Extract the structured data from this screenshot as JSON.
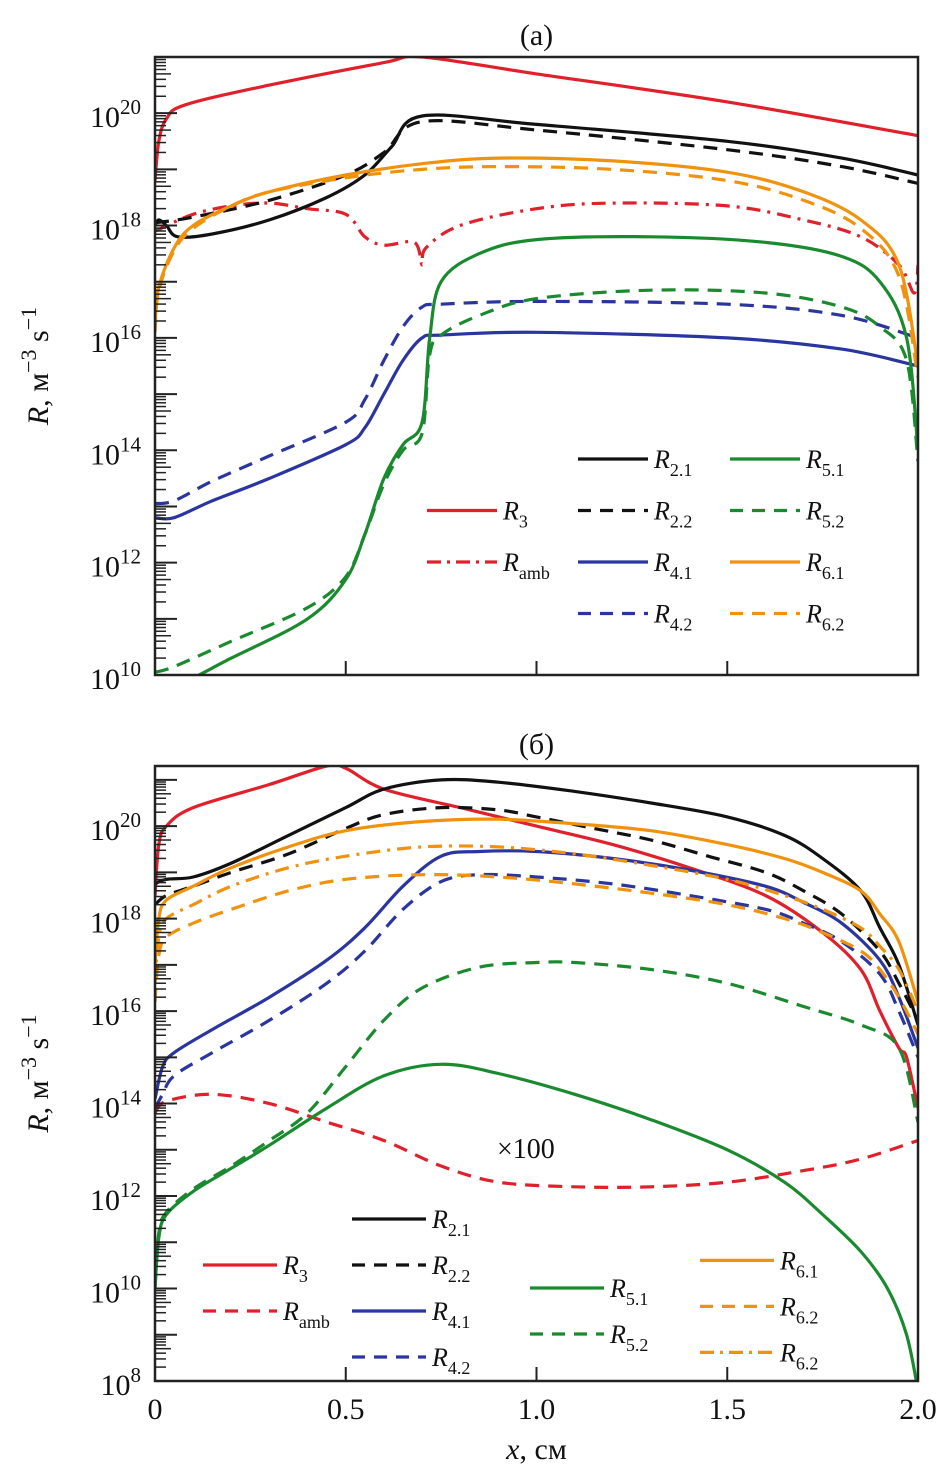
{
  "chart_data": [
    {
      "type": "line",
      "title": "(a)",
      "xlabel": "x, см",
      "ylabel": "R, м^-3 s^-1",
      "yscale": "log",
      "xlim": [
        0,
        2.0
      ],
      "ylim_log10": [
        10,
        21
      ],
      "xticks": [
        0,
        0.5,
        1.0,
        1.5,
        2.0
      ],
      "show_xtick_labels": false,
      "yticks_log10": [
        10,
        12,
        14,
        16,
        18,
        20
      ],
      "ytick_labels": [
        {
          "base": "10",
          "exp": "10"
        },
        {
          "base": "10",
          "exp": "12"
        },
        {
          "base": "10",
          "exp": "14"
        },
        {
          "base": "10",
          "exp": "16"
        },
        {
          "base": "10",
          "exp": "18"
        },
        {
          "base": "10",
          "exp": "20"
        }
      ],
      "legend": {
        "placement": "lower-right",
        "columns": [
          [
            "R3",
            "Ramb"
          ],
          [
            "R2.1",
            "R2.2",
            "R4.1",
            "R4.2"
          ],
          [
            "R5.1",
            "R5.2",
            "R6.1",
            "R6.2"
          ]
        ]
      },
      "series": [
        {
          "name": "R3",
          "label": "R",
          "sub": "3",
          "color": "#e0202a",
          "dash": "solid",
          "x": [
            0,
            0.01,
            0.03,
            0.08,
            0.3,
            0.6,
            0.7,
            1.0,
            1.5,
            2.0
          ],
          "log10y": [
            18.8,
            19.5,
            19.9,
            20.15,
            20.5,
            20.9,
            21.0,
            20.7,
            20.2,
            19.6
          ]
        },
        {
          "name": "Ramb",
          "label": "R",
          "sub": "amb",
          "color": "#e0202a",
          "dash": "dashdot",
          "x": [
            0,
            0.1,
            0.2,
            0.3,
            0.4,
            0.5,
            0.55,
            0.6,
            0.68,
            0.7,
            0.71,
            0.8,
            1.0,
            1.2,
            1.5,
            1.7,
            1.85,
            1.95,
            1.99,
            2.0
          ],
          "log10y": [
            17.9,
            18.2,
            18.35,
            18.4,
            18.3,
            18.2,
            17.8,
            17.65,
            17.7,
            17.3,
            17.6,
            18.0,
            18.3,
            18.4,
            18.35,
            18.1,
            17.8,
            17.3,
            16.8,
            17.3
          ],
          "scaled_x100": false
        },
        {
          "name": "R2.1",
          "label": "R",
          "sub": "2.1",
          "color": "#111111",
          "dash": "solid",
          "x": [
            0,
            0.01,
            0.03,
            0.06,
            0.15,
            0.3,
            0.45,
            0.55,
            0.62,
            0.7,
            1.0,
            1.5,
            1.8,
            2.0
          ],
          "log10y": [
            18.0,
            18.1,
            18.0,
            17.8,
            17.85,
            18.1,
            18.5,
            18.9,
            19.4,
            19.95,
            19.8,
            19.5,
            19.2,
            18.9
          ]
        },
        {
          "name": "R2.2",
          "label": "R",
          "sub": "2.2",
          "color": "#111111",
          "dash": "dashed",
          "x": [
            0,
            0.1,
            0.3,
            0.5,
            0.6,
            0.7,
            1.0,
            1.5,
            1.8,
            2.0
          ],
          "log10y": [
            18.05,
            18.15,
            18.45,
            18.9,
            19.3,
            19.85,
            19.7,
            19.35,
            19.05,
            18.75
          ]
        },
        {
          "name": "R4.1",
          "label": "R",
          "sub": "4.1",
          "color": "#2a35a0",
          "dash": "solid",
          "x": [
            0,
            0.05,
            0.15,
            0.3,
            0.5,
            0.55,
            0.6,
            0.65,
            0.7,
            0.75,
            1.0,
            1.5,
            1.8,
            2.0
          ],
          "log10y": [
            12.8,
            12.8,
            13.1,
            13.5,
            14.1,
            14.4,
            15.0,
            15.6,
            16.0,
            16.05,
            16.1,
            16.0,
            15.8,
            15.5
          ]
        },
        {
          "name": "R4.2",
          "label": "R",
          "sub": "4.2",
          "color": "#2a35a0",
          "dash": "dashed",
          "x": [
            0,
            0.05,
            0.15,
            0.3,
            0.5,
            0.55,
            0.6,
            0.65,
            0.7,
            0.75,
            1.0,
            1.5,
            1.8,
            2.0
          ],
          "log10y": [
            13.05,
            13.1,
            13.45,
            13.9,
            14.5,
            14.9,
            15.6,
            16.2,
            16.55,
            16.6,
            16.65,
            16.6,
            16.4,
            16.0
          ]
        },
        {
          "name": "R5.1",
          "label": "R",
          "sub": "5.1",
          "color": "#1a8a2e",
          "dash": "solid",
          "x": [
            0,
            0.05,
            0.2,
            0.4,
            0.5,
            0.55,
            0.6,
            0.65,
            0.7,
            0.72,
            0.75,
            0.85,
            1.0,
            1.3,
            1.6,
            1.8,
            1.9,
            1.97,
            2.0
          ],
          "log10y": [
            9.9,
            9.8,
            10.3,
            11.0,
            11.7,
            12.5,
            13.5,
            14.1,
            14.5,
            16.0,
            17.0,
            17.5,
            17.75,
            17.8,
            17.7,
            17.45,
            17.0,
            16.0,
            14.0
          ]
        },
        {
          "name": "R5.2",
          "label": "R",
          "sub": "5.2",
          "color": "#1a8a2e",
          "dash": "dashed",
          "x": [
            0,
            0.05,
            0.2,
            0.4,
            0.5,
            0.55,
            0.6,
            0.65,
            0.7,
            0.72,
            0.75,
            0.85,
            1.0,
            1.3,
            1.6,
            1.8,
            1.9,
            1.97,
            2.0
          ],
          "log10y": [
            10.05,
            10.15,
            10.6,
            11.2,
            11.75,
            12.5,
            13.4,
            14.0,
            14.3,
            15.7,
            16.05,
            16.4,
            16.7,
            16.85,
            16.8,
            16.55,
            16.2,
            15.6,
            13.8
          ]
        },
        {
          "name": "R6.1",
          "label": "R",
          "sub": "6.1",
          "color": "#f0920e",
          "dash": "solid",
          "x": [
            0,
            0.01,
            0.05,
            0.1,
            0.2,
            0.3,
            0.5,
            0.7,
            0.9,
            1.2,
            1.5,
            1.7,
            1.85,
            1.95,
            2.0
          ],
          "log10y": [
            16.2,
            16.9,
            17.6,
            18.0,
            18.35,
            18.6,
            18.9,
            19.1,
            19.2,
            19.15,
            18.95,
            18.6,
            18.1,
            17.3,
            15.5
          ]
        },
        {
          "name": "R6.2",
          "label": "R",
          "sub": "6.2",
          "color": "#f0920e",
          "dash": "dashed",
          "x": [
            0,
            0.01,
            0.05,
            0.1,
            0.2,
            0.3,
            0.5,
            0.7,
            0.9,
            1.2,
            1.5,
            1.7,
            1.85,
            1.95,
            2.0
          ],
          "log10y": [
            16.1,
            16.85,
            17.55,
            17.95,
            18.35,
            18.6,
            18.85,
            19.0,
            19.05,
            19.0,
            18.8,
            18.45,
            17.95,
            17.1,
            15.3
          ]
        }
      ]
    },
    {
      "type": "line",
      "title": "(б)",
      "xlabel": "x, см",
      "ylabel": "R, м^-3 s^-1",
      "yscale": "log",
      "xlim": [
        0,
        2.0
      ],
      "ylim_log10": [
        8,
        21.3
      ],
      "xticks": [
        0,
        0.5,
        1.0,
        1.5,
        2.0
      ],
      "xtick_labels": [
        "0",
        "0.5",
        "1.0",
        "1.5",
        "2.0"
      ],
      "yticks_log10": [
        8,
        10,
        12,
        14,
        16,
        18,
        20
      ],
      "ytick_labels": [
        {
          "base": "10",
          "exp": "8"
        },
        {
          "base": "10",
          "exp": "10"
        },
        {
          "base": "10",
          "exp": "12"
        },
        {
          "base": "10",
          "exp": "14"
        },
        {
          "base": "10",
          "exp": "16"
        },
        {
          "base": "10",
          "exp": "18"
        },
        {
          "base": "10",
          "exp": "20"
        }
      ],
      "annotation": "×100",
      "legend": {
        "placement": "lower-center",
        "columns": [
          [
            "R3",
            "Ramb"
          ],
          [
            "R2.1",
            "R2.2",
            "R4.1",
            "R4.2"
          ],
          [
            "R5.1",
            "R5.2"
          ],
          [
            "R6.1",
            "R6.2 (dashed)",
            "R6.2 (dash-dot)"
          ]
        ]
      },
      "series": [
        {
          "name": "R3",
          "label": "R",
          "sub": "3",
          "color": "#e0202a",
          "dash": "solid",
          "x": [
            0,
            0.01,
            0.03,
            0.1,
            0.3,
            0.45,
            0.5,
            0.6,
            0.8,
            1.0,
            1.2,
            1.4,
            1.6,
            1.75,
            1.85,
            1.9,
            1.95,
            1.97,
            2.0
          ],
          "log10y": [
            18.5,
            19.6,
            20.0,
            20.4,
            20.9,
            21.3,
            21.25,
            20.8,
            20.4,
            20.0,
            19.6,
            19.1,
            18.5,
            17.7,
            16.9,
            16.0,
            15.2,
            15.0,
            13.9
          ]
        },
        {
          "name": "Ramb",
          "label": "R",
          "sub": "amb",
          "color": "#e0202a",
          "dash": "dashed",
          "x": [
            0,
            0.03,
            0.15,
            0.3,
            0.45,
            0.6,
            0.75,
            0.9,
            1.1,
            1.3,
            1.5,
            1.7,
            1.85,
            2.0
          ],
          "log10y": [
            13.8,
            14.05,
            14.2,
            14.0,
            13.6,
            13.2,
            12.65,
            12.3,
            12.2,
            12.2,
            12.3,
            12.55,
            12.8,
            13.2
          ],
          "scaled_x100": true
        },
        {
          "name": "R2.1",
          "label": "R",
          "sub": "2.1",
          "color": "#111111",
          "dash": "solid",
          "x": [
            0,
            0.03,
            0.1,
            0.2,
            0.35,
            0.5,
            0.6,
            0.75,
            0.9,
            1.1,
            1.3,
            1.5,
            1.65,
            1.75,
            1.85,
            1.9,
            1.95,
            2.0
          ],
          "log10y": [
            18.75,
            18.85,
            18.9,
            19.2,
            19.8,
            20.4,
            20.8,
            21.0,
            20.95,
            20.75,
            20.5,
            20.2,
            19.8,
            19.3,
            18.6,
            17.8,
            17.0,
            15.7
          ]
        },
        {
          "name": "R2.2",
          "label": "R",
          "sub": "2.2",
          "color": "#111111",
          "dash": "dashed",
          "x": [
            0,
            0.03,
            0.1,
            0.2,
            0.35,
            0.5,
            0.6,
            0.75,
            0.9,
            1.0,
            1.15,
            1.3,
            1.45,
            1.6,
            1.7,
            1.8,
            1.9,
            1.95,
            2.0
          ],
          "log10y": [
            18.3,
            18.5,
            18.7,
            19.0,
            19.4,
            19.95,
            20.25,
            20.4,
            20.35,
            20.2,
            19.95,
            19.7,
            19.35,
            19.0,
            18.6,
            18.1,
            17.3,
            16.6,
            15.8
          ]
        },
        {
          "name": "R4.1",
          "label": "R",
          "sub": "4.1",
          "color": "#2a35a0",
          "dash": "solid",
          "x": [
            0,
            0.02,
            0.05,
            0.15,
            0.3,
            0.45,
            0.55,
            0.65,
            0.75,
            0.85,
            1.0,
            1.2,
            1.4,
            1.6,
            1.7,
            1.8,
            1.9,
            1.95,
            2.0
          ],
          "log10y": [
            14.1,
            14.8,
            15.1,
            15.6,
            16.3,
            17.1,
            17.8,
            18.7,
            19.35,
            19.45,
            19.45,
            19.3,
            19.05,
            18.7,
            18.35,
            17.9,
            17.1,
            16.3,
            15.2
          ]
        },
        {
          "name": "R4.2",
          "label": "R",
          "sub": "4.2",
          "color": "#2a35a0",
          "dash": "dashed",
          "x": [
            0,
            0.02,
            0.05,
            0.15,
            0.3,
            0.45,
            0.55,
            0.65,
            0.75,
            0.85,
            1.0,
            1.2,
            1.4,
            1.6,
            1.7,
            1.8,
            1.9,
            1.95,
            2.0
          ],
          "log10y": [
            13.9,
            14.2,
            14.6,
            15.1,
            15.8,
            16.6,
            17.3,
            18.2,
            18.8,
            18.95,
            18.9,
            18.75,
            18.5,
            18.2,
            17.9,
            17.5,
            16.8,
            16.0,
            15.0
          ]
        },
        {
          "name": "R5.1",
          "label": "R",
          "sub": "5.1",
          "color": "#1a8a2e",
          "dash": "solid",
          "x": [
            0,
            0.01,
            0.03,
            0.1,
            0.2,
            0.3,
            0.45,
            0.6,
            0.75,
            0.9,
            1.1,
            1.3,
            1.5,
            1.65,
            1.75,
            1.85,
            1.92,
            1.97,
            2.0
          ],
          "log10y": [
            10.0,
            11.1,
            11.6,
            12.1,
            12.6,
            13.1,
            13.9,
            14.6,
            14.85,
            14.65,
            14.2,
            13.65,
            13.0,
            12.3,
            11.6,
            10.8,
            10.0,
            9.0,
            7.8
          ]
        },
        {
          "name": "R5.2",
          "label": "R",
          "sub": "5.2",
          "color": "#1a8a2e",
          "dash": "dashed",
          "x": [
            0,
            0.01,
            0.03,
            0.1,
            0.2,
            0.3,
            0.4,
            0.5,
            0.6,
            0.7,
            0.85,
            1.0,
            1.1,
            1.3,
            1.5,
            1.7,
            1.85,
            1.95,
            2.0
          ],
          "log10y": [
            10.0,
            11.2,
            11.65,
            12.15,
            12.65,
            13.2,
            13.8,
            14.8,
            15.8,
            16.5,
            16.95,
            17.05,
            17.05,
            16.9,
            16.6,
            16.1,
            15.7,
            15.2,
            13.6
          ]
        },
        {
          "name": "R6.1",
          "label": "R",
          "sub": "6.1",
          "color": "#f0920e",
          "dash": "solid",
          "x": [
            0,
            0.01,
            0.03,
            0.1,
            0.2,
            0.35,
            0.5,
            0.7,
            0.9,
            1.1,
            1.3,
            1.5,
            1.65,
            1.75,
            1.85,
            1.9,
            1.95,
            2.0
          ],
          "log10y": [
            17.0,
            18.0,
            18.4,
            18.7,
            19.1,
            19.55,
            19.9,
            20.1,
            20.15,
            20.05,
            19.9,
            19.6,
            19.3,
            19.0,
            18.6,
            18.1,
            17.5,
            16.2
          ]
        },
        {
          "name": "R6.2",
          "label": "R",
          "sub": "6.2",
          "color": "#f0920e",
          "dash": "dashed",
          "x": [
            0,
            0.01,
            0.03,
            0.1,
            0.2,
            0.35,
            0.5,
            0.7,
            0.9,
            1.1,
            1.3,
            1.5,
            1.65,
            1.75,
            1.85,
            1.9,
            1.95,
            2.0
          ],
          "log10y": [
            16.2,
            17.2,
            17.6,
            17.9,
            18.2,
            18.6,
            18.85,
            18.95,
            18.9,
            18.75,
            18.55,
            18.3,
            18.0,
            17.7,
            17.3,
            16.9,
            16.3,
            15.5
          ]
        },
        {
          "name": "R6.2b",
          "label": "R",
          "sub": "6.2",
          "color": "#f0920e",
          "dash": "dashdot",
          "x": [
            0,
            0.01,
            0.03,
            0.1,
            0.2,
            0.35,
            0.5,
            0.7,
            0.9,
            1.1,
            1.3,
            1.5,
            1.65,
            1.75,
            1.85,
            1.9,
            1.95,
            2.0
          ],
          "log10y": [
            16.6,
            17.6,
            18.0,
            18.3,
            18.7,
            19.1,
            19.35,
            19.55,
            19.55,
            19.4,
            19.15,
            18.85,
            18.5,
            18.2,
            17.8,
            17.4,
            16.9,
            16.0
          ]
        }
      ]
    }
  ]
}
